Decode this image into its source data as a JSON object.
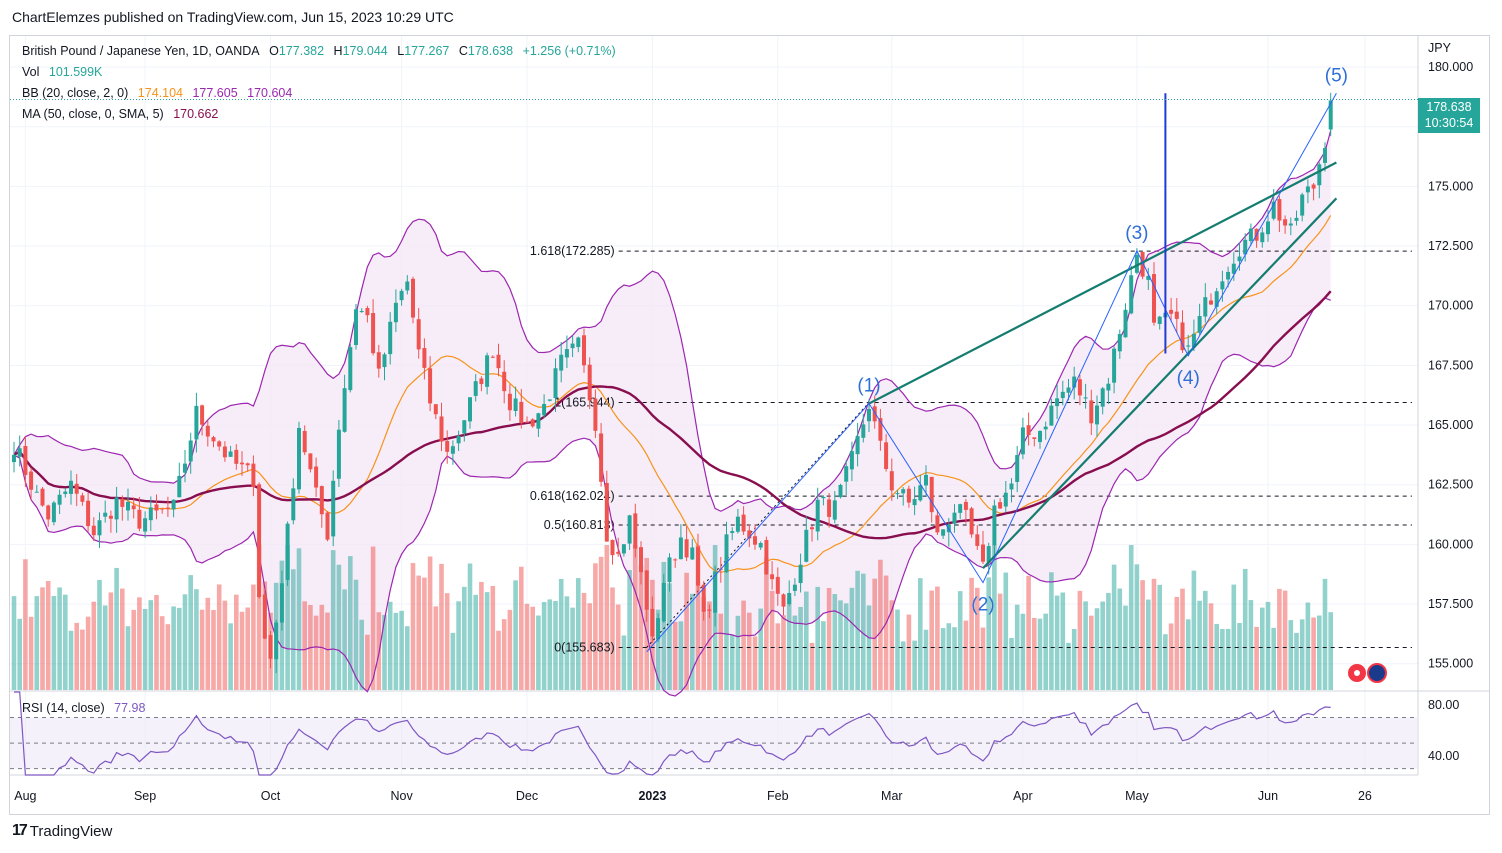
{
  "header": {
    "published_by": "ChartElemzes published on TradingView.com, Jun 15, 2023 10:29 UTC"
  },
  "legend": {
    "symbol": "British Pound / Japanese Yen, 1D, OANDA",
    "open_label": "O",
    "open": "177.382",
    "high_label": "H",
    "high": "179.044",
    "low_label": "L",
    "low": "177.267",
    "close_label": "C",
    "close": "178.638",
    "change": "+1.256 (+0.71%)",
    "vol_label": "Vol",
    "vol": "101.599K",
    "bb_label": "BB (20, close, 2, 0)",
    "bb_basis": "174.104",
    "bb_upper": "177.605",
    "bb_lower": "170.604",
    "ma_label": "MA (50, close, 0, SMA, 5)",
    "ma_value": "170.662",
    "rsi_label": "RSI (14, close)",
    "rsi_value": "77.98"
  },
  "price_badge": {
    "price": "178.638",
    "countdown": "10:30:54"
  },
  "colors": {
    "up": "#26a69a",
    "down": "#ef5350",
    "bb_band": "#9c27b0",
    "bb_fill": "#f3e5f5",
    "bb_basis": "#f7931a",
    "ma": "#880e4f",
    "trendline": "#147d6f",
    "wave": "#2962ff",
    "rsi": "#7e57c2"
  },
  "branding": {
    "logo_text": "TradingView"
  },
  "chart_data": {
    "type": "candlestick",
    "currency": "JPY",
    "ylim": [
      153.9,
      181.3
    ],
    "y_ticks": [
      155.0,
      157.5,
      160.0,
      162.5,
      165.0,
      167.5,
      170.0,
      172.5,
      175.0,
      177.5,
      180.0
    ],
    "x_axis_labels": [
      {
        "label": "Aug",
        "bar": 2
      },
      {
        "label": "Sep",
        "bar": 23
      },
      {
        "label": "Oct",
        "bar": 45
      },
      {
        "label": "Nov",
        "bar": 68
      },
      {
        "label": "Dec",
        "bar": 90
      },
      {
        "label": "2023",
        "bar": 112
      },
      {
        "label": "Feb",
        "bar": 134
      },
      {
        "label": "Mar",
        "bar": 154
      },
      {
        "label": "Apr",
        "bar": 177
      },
      {
        "label": "May",
        "bar": 197
      },
      {
        "label": "Jun",
        "bar": 220
      },
      {
        "label": "26",
        "bar": 237
      }
    ],
    "price_anchors": [
      [
        0,
        164.2
      ],
      [
        4,
        162.0
      ],
      [
        6,
        161.2
      ],
      [
        10,
        162.5
      ],
      [
        14,
        160.5
      ],
      [
        18,
        161.8
      ],
      [
        22,
        161.0
      ],
      [
        28,
        161.5
      ],
      [
        32,
        165.5
      ],
      [
        38,
        163.5
      ],
      [
        42,
        162.8
      ],
      [
        43,
        158.0
      ],
      [
        44,
        156.0
      ],
      [
        45,
        155.2
      ],
      [
        46,
        156.8
      ],
      [
        48,
        160.5
      ],
      [
        50,
        165.0
      ],
      [
        53,
        162.0
      ],
      [
        55,
        160.5
      ],
      [
        57,
        165.0
      ],
      [
        60,
        170.0
      ],
      [
        62,
        169.5
      ],
      [
        64,
        167.0
      ],
      [
        67,
        170.0
      ],
      [
        69,
        171.0
      ],
      [
        71,
        168.0
      ],
      [
        73,
        166.0
      ],
      [
        76,
        163.8
      ],
      [
        78,
        164.7
      ],
      [
        81,
        166.5
      ],
      [
        84,
        168.2
      ],
      [
        87,
        166.0
      ],
      [
        90,
        165.0
      ],
      [
        93,
        165.8
      ],
      [
        96,
        167.6
      ],
      [
        99,
        168.3
      ],
      [
        102,
        165.2
      ],
      [
        104,
        160.5
      ],
      [
        106,
        159.5
      ],
      [
        108,
        161.0
      ],
      [
        111,
        157.5
      ],
      [
        112,
        155.8
      ],
      [
        114,
        158.5
      ],
      [
        117,
        160.3
      ],
      [
        119,
        159.5
      ],
      [
        121,
        156.8
      ],
      [
        123,
        158.5
      ],
      [
        125,
        160.0
      ],
      [
        127,
        161.0
      ],
      [
        131,
        160.0
      ],
      [
        133,
        158.3
      ],
      [
        135,
        157.2
      ],
      [
        138,
        159.5
      ],
      [
        141,
        161.7
      ],
      [
        144,
        161.5
      ],
      [
        147,
        163.5
      ],
      [
        150,
        165.9
      ],
      [
        152,
        164.0
      ],
      [
        154,
        162.5
      ],
      [
        157,
        161.7
      ],
      [
        160,
        162.7
      ],
      [
        162,
        160.3
      ],
      [
        165,
        161.5
      ],
      [
        167,
        161.0
      ],
      [
        170,
        158.9
      ],
      [
        172,
        161.5
      ],
      [
        175,
        162.5
      ],
      [
        177,
        164.5
      ],
      [
        180,
        164.8
      ],
      [
        183,
        166.1
      ],
      [
        186,
        166.8
      ],
      [
        189,
        165.5
      ],
      [
        192,
        167.0
      ],
      [
        194,
        169.0
      ],
      [
        197,
        172.2
      ],
      [
        199,
        171.0
      ],
      [
        200,
        169.0
      ],
      [
        203,
        169.5
      ],
      [
        206,
        168.1
      ],
      [
        209,
        170.0
      ],
      [
        212,
        171.4
      ],
      [
        215,
        172.5
      ],
      [
        218,
        173.0
      ],
      [
        221,
        174.2
      ],
      [
        224,
        173.0
      ],
      [
        226,
        174.5
      ],
      [
        228,
        175.0
      ],
      [
        230,
        177.0
      ],
      [
        231,
        178.6
      ]
    ],
    "volume_range": [
      40,
      145
    ],
    "volume_ticks": [],
    "rsi": {
      "ylim": [
        25,
        90
      ],
      "levels": [
        70,
        50,
        30
      ],
      "axis_labels": [
        "80.00",
        "40.00"
      ],
      "last": 77.98
    },
    "bollinger": {
      "period": 20,
      "stddev": 2,
      "last_basis": 174.104,
      "last_upper": 177.605,
      "last_lower": 170.604
    },
    "sma50": {
      "last": 170.662
    },
    "fib_levels": [
      {
        "label": "1.618(172.285)",
        "price": 172.285
      },
      {
        "label": "1(165.944)",
        "price": 165.944
      },
      {
        "label": "0.618(162.024)",
        "price": 162.024
      },
      {
        "label": "0.5(160.813)",
        "price": 160.813
      },
      {
        "label": "0(155.683)",
        "price": 155.683
      }
    ],
    "wave_labels": [
      {
        "label": "(1)",
        "bar": 150,
        "price": 165.9
      },
      {
        "label": "(2)",
        "bar": 170,
        "price": 158.4
      },
      {
        "label": "(3)",
        "bar": 197,
        "price": 172.3
      },
      {
        "label": "(4)",
        "bar": 206,
        "price": 167.9
      },
      {
        "label": "(5)",
        "bar": 232,
        "price": 178.9
      }
    ],
    "wave_points": [
      {
        "bar": 111,
        "price": 155.5
      },
      {
        "bar": 150,
        "price": 165.9
      },
      {
        "bar": 170,
        "price": 158.4
      },
      {
        "bar": 197,
        "price": 172.3
      },
      {
        "bar": 206,
        "price": 167.9
      },
      {
        "bar": 232,
        "price": 178.9
      }
    ],
    "trendlines": [
      {
        "from": {
          "bar": 150,
          "price": 165.9
        },
        "to": {
          "bar": 232,
          "price": 176.0
        }
      },
      {
        "from": {
          "bar": 170,
          "price": 159.0
        },
        "to": {
          "bar": 232,
          "price": 174.5
        }
      }
    ],
    "projection_line": {
      "bar": 202,
      "price_from": 168.0,
      "price_to": 178.9
    }
  }
}
